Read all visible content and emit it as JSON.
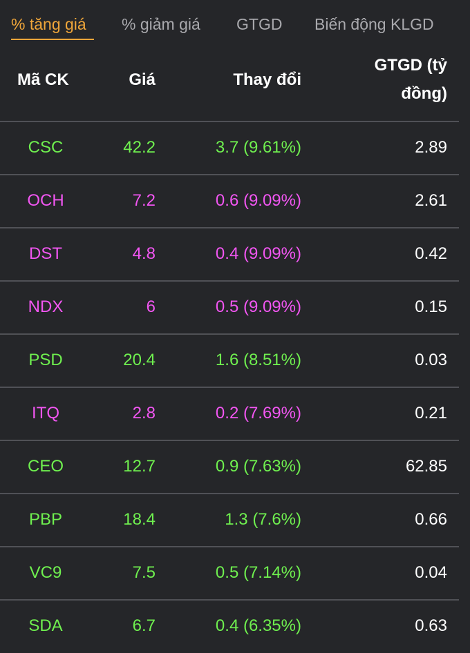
{
  "tabs": [
    {
      "label": "% tăng giá",
      "active": true
    },
    {
      "label": "% giảm giá",
      "active": false
    },
    {
      "label": "GTGD",
      "active": false
    },
    {
      "label": "Biến động KLGD",
      "active": false
    }
  ],
  "table": {
    "headers": {
      "code": "Mã CK",
      "price": "Giá",
      "change": "Thay đổi",
      "value_line1": "GTGD (tỷ",
      "value_line2": "đồng)"
    },
    "rows": [
      {
        "code": "CSC",
        "price": "42.2",
        "change": "3.7 (9.61%)",
        "value": "2.89",
        "status": "up"
      },
      {
        "code": "OCH",
        "price": "7.2",
        "change": "0.6 (9.09%)",
        "value": "2.61",
        "status": "ceiling"
      },
      {
        "code": "DST",
        "price": "4.8",
        "change": "0.4 (9.09%)",
        "value": "0.42",
        "status": "ceiling"
      },
      {
        "code": "NDX",
        "price": "6",
        "change": "0.5 (9.09%)",
        "value": "0.15",
        "status": "ceiling"
      },
      {
        "code": "PSD",
        "price": "20.4",
        "change": "1.6 (8.51%)",
        "value": "0.03",
        "status": "up"
      },
      {
        "code": "ITQ",
        "price": "2.8",
        "change": "0.2 (7.69%)",
        "value": "0.21",
        "status": "ceiling"
      },
      {
        "code": "CEO",
        "price": "12.7",
        "change": "0.9 (7.63%)",
        "value": "62.85",
        "status": "up"
      },
      {
        "code": "PBP",
        "price": "18.4",
        "change": "1.3 (7.6%)",
        "value": "0.66",
        "status": "up"
      },
      {
        "code": "VC9",
        "price": "7.5",
        "change": "0.5 (7.14%)",
        "value": "0.04",
        "status": "up"
      },
      {
        "code": "SDA",
        "price": "6.7",
        "change": "0.4 (6.35%)",
        "value": "0.63",
        "status": "up"
      }
    ]
  },
  "colors": {
    "background": "#252629",
    "active_tab": "#f0a63a",
    "inactive_tab": "#a9a9ad",
    "up": "#6ff04f",
    "ceiling": "#f256f2",
    "divider": "#505156"
  }
}
